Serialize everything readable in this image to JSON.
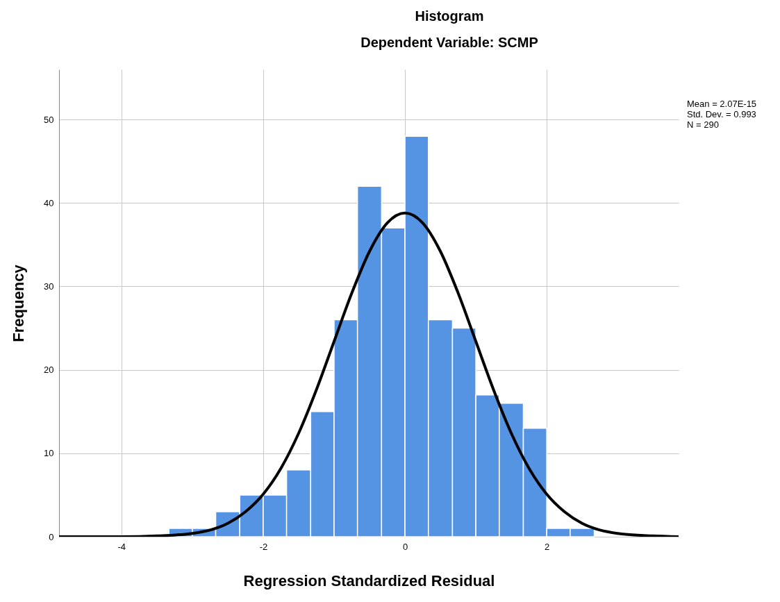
{
  "chart_data": {
    "type": "histogram",
    "title": "Histogram",
    "subtitle": "Dependent Variable: SCMP",
    "xlabel": "Regression Standardized Residual",
    "ylabel": "Frequency",
    "bins": [
      -3.33,
      -3,
      -2.67,
      -2.33,
      -2,
      -1.67,
      -1.33,
      -1,
      -0.67,
      -0.33,
      0,
      0.33,
      0.67,
      1,
      1.33,
      1.67,
      2,
      2.33,
      2.67
    ],
    "values": [
      1,
      1,
      3,
      5,
      5,
      8,
      15,
      26,
      42,
      37,
      48,
      26,
      25,
      17,
      16,
      13,
      1,
      1
    ],
    "color": "#5593e3",
    "series": [
      {
        "type": "line",
        "color": "#000000",
        "x": [
          -4.88,
          -4,
          -3.5,
          -3,
          -2.75,
          -2.5,
          -2.25,
          -2,
          -1.75,
          -1.5,
          -1.25,
          -1,
          -0.75,
          -0.5,
          -0.25,
          0,
          0.25,
          0.5,
          0.75,
          1,
          1.25,
          1.5,
          1.75,
          2,
          2.25,
          2.5,
          2.75,
          3,
          3.5,
          3.86
        ],
        "values": [
          0,
          0,
          0.1,
          0.4,
          0.8,
          1.6,
          3,
          5.1,
          8.2,
          12.4,
          17.6,
          23.4,
          29.2,
          34.2,
          37.6,
          38.8,
          37.6,
          34.2,
          29.2,
          23.4,
          17.6,
          12.4,
          8.2,
          5.1,
          3,
          1.6,
          0.8,
          0.4,
          0.1,
          0
        ]
      }
    ],
    "xlim": [
      -4.88,
      3.86
    ],
    "xticks": [
      -4,
      -2,
      0,
      2
    ],
    "ylim": [
      0,
      56
    ],
    "yticks": [
      0,
      10,
      20,
      30,
      40,
      50
    ],
    "grid": true,
    "annotations": [
      "Mean = 2.07E-15",
      "Std. Dev. = 0.993",
      "N = 290"
    ]
  }
}
